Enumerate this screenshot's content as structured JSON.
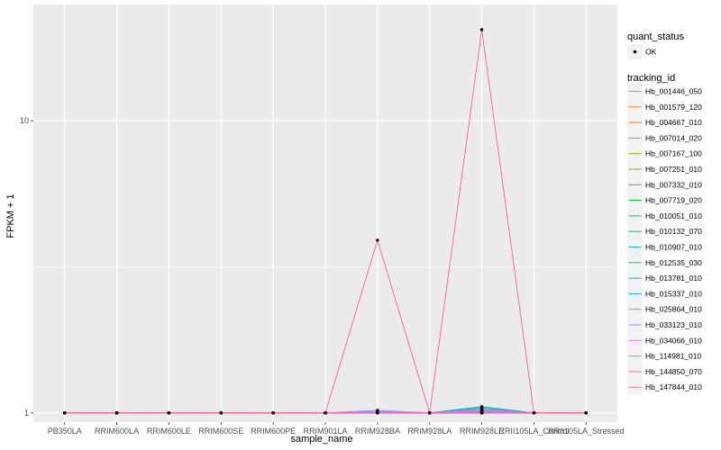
{
  "chart_data": {
    "type": "line",
    "title": "",
    "xlabel": "sample_name",
    "ylabel": "FPKM + 1",
    "y_scale": "log10",
    "ylim": [
      0.93,
      25
    ],
    "y_ticks": [
      1,
      10
    ],
    "y_tick_labels": [
      "1",
      "10"
    ],
    "grid": true,
    "legend_position": "right",
    "categories": [
      "PB350LA",
      "RRIM600LA",
      "RRIM600LE",
      "RRIM600SE",
      "RRIM600PE",
      "RRIM901LA",
      "RRIM928BA",
      "RRIM928LA",
      "RRIM928LE",
      "RRII105LA_Control",
      "RRII105LA_Stressed"
    ],
    "quant_status_legend": {
      "title": "quant_status",
      "entries": [
        "OK"
      ]
    },
    "legend_title": "tracking_id",
    "series": [
      {
        "name": "Hb_001446_050",
        "color": "#F8766D",
        "values": [
          1,
          1,
          1,
          1,
          1,
          1,
          1,
          1,
          1,
          1,
          1
        ]
      },
      {
        "name": "Hb_001579_120",
        "color": "#EC8239",
        "values": [
          1,
          1,
          1,
          1,
          1,
          1,
          1,
          1,
          1,
          1,
          1
        ]
      },
      {
        "name": "Hb_004667_010",
        "color": "#DB8E00",
        "values": [
          1,
          1,
          1,
          1,
          1,
          1,
          1,
          1,
          1,
          1,
          1
        ]
      },
      {
        "name": "Hb_007014_020",
        "color": "#C79800",
        "values": [
          1,
          1,
          1,
          1,
          1,
          1,
          1,
          1,
          1,
          1,
          1
        ]
      },
      {
        "name": "Hb_007167_100",
        "color": "#AEA200",
        "values": [
          1,
          1,
          1,
          1,
          1,
          1,
          1,
          1,
          1,
          1,
          1
        ]
      },
      {
        "name": "Hb_007251_010",
        "color": "#8FAA00",
        "values": [
          1,
          1,
          1,
          1,
          1,
          1,
          1,
          1,
          1,
          1,
          1
        ]
      },
      {
        "name": "Hb_007332_010",
        "color": "#64B200",
        "values": [
          1,
          1,
          1,
          1,
          1,
          1,
          1,
          1,
          1,
          1,
          1
        ]
      },
      {
        "name": "Hb_007719_020",
        "color": "#00B81B",
        "values": [
          1,
          1,
          1,
          1,
          1,
          1,
          1,
          1,
          1,
          1,
          1
        ]
      },
      {
        "name": "Hb_010051_010",
        "color": "#00BD5C",
        "values": [
          1,
          1,
          1,
          1,
          1,
          1,
          1,
          1,
          1,
          1,
          1
        ]
      },
      {
        "name": "Hb_010132_070",
        "color": "#00C08E",
        "values": [
          1,
          1,
          1,
          1,
          1,
          1,
          1.01,
          1,
          1.05,
          1,
          1
        ]
      },
      {
        "name": "Hb_010907_010",
        "color": "#00C1B7",
        "values": [
          1,
          1,
          1,
          1,
          1,
          1,
          1,
          1,
          1.04,
          1,
          1
        ]
      },
      {
        "name": "Hb_012535_030",
        "color": "#00BDD4",
        "values": [
          1,
          1,
          1,
          1,
          1,
          1,
          1,
          1,
          1.03,
          1,
          1
        ]
      },
      {
        "name": "Hb_013781_010",
        "color": "#00B5EE",
        "values": [
          1,
          1,
          1,
          1,
          1,
          1,
          1,
          1,
          1.02,
          1,
          1
        ]
      },
      {
        "name": "Hb_015337_010",
        "color": "#00A7FF",
        "values": [
          1,
          1,
          1,
          1,
          1,
          1,
          1,
          1,
          1.01,
          1,
          1
        ]
      },
      {
        "name": "Hb_025864_010",
        "color": "#7F96FF",
        "values": [
          1,
          1,
          1,
          1,
          1,
          1,
          1.02,
          1,
          1.03,
          1,
          1
        ]
      },
      {
        "name": "Hb_033123_010",
        "color": "#BC81FF",
        "values": [
          1,
          1,
          1,
          1,
          1,
          1,
          1.01,
          1,
          1.02,
          1,
          1
        ]
      },
      {
        "name": "Hb_034066_010",
        "color": "#E26EF7",
        "values": [
          1,
          1,
          1,
          1,
          1,
          1,
          1,
          1,
          1.02,
          1,
          1
        ]
      },
      {
        "name": "Hb_114981_010",
        "color": "#F863DF",
        "values": [
          1,
          1,
          1,
          1,
          1,
          1,
          1.01,
          1,
          1.01,
          1,
          1
        ]
      },
      {
        "name": "Hb_144850_070",
        "color": "#FF62BF",
        "values": [
          1,
          1,
          1,
          1,
          1,
          1,
          1,
          1,
          1,
          1,
          1
        ]
      },
      {
        "name": "Hb_147844_010",
        "color": "#FF6A98",
        "values": [
          1,
          1,
          1,
          1,
          1,
          1,
          3.9,
          1,
          20.5,
          1,
          1
        ]
      }
    ]
  }
}
